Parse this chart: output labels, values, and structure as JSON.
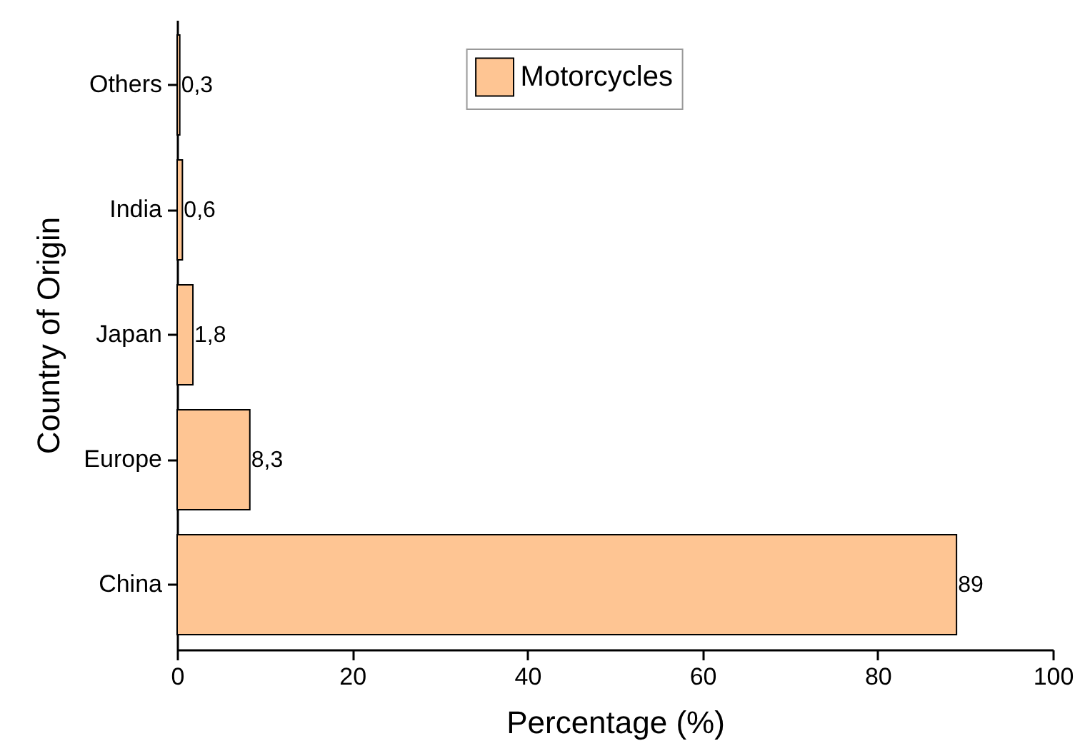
{
  "chart_data": {
    "type": "bar",
    "orientation": "horizontal",
    "xlabel": "Percentage (%)",
    "ylabel": "Country of Origin",
    "categories": [
      "Others",
      "India",
      "Japan",
      "Europe",
      "China"
    ],
    "series": [
      {
        "name": "Motorcycles",
        "color": "#fec593",
        "values": [
          0.3,
          0.6,
          1.8,
          8.3,
          89
        ],
        "value_labels": [
          "0,3",
          "0,6",
          "1,8",
          "8,3",
          "89"
        ]
      }
    ],
    "xlim": [
      0,
      100
    ],
    "xticks": [
      0,
      20,
      40,
      60,
      80,
      100
    ],
    "grid": false,
    "legend": "top"
  }
}
